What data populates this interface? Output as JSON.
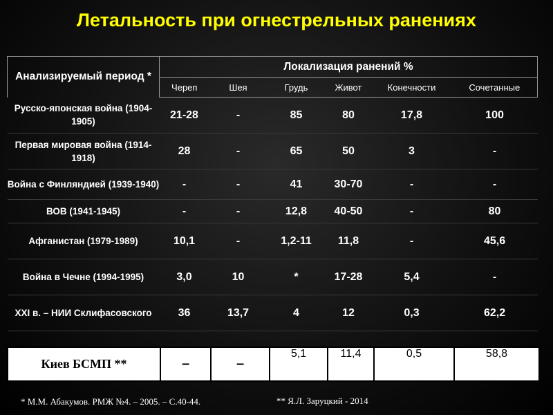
{
  "title": "Летальность при огнестрельных ранениях",
  "table": {
    "period_header": "Анализируемый период *",
    "localization_header": "Локализация ранений %",
    "columns": [
      "Череп",
      "Шея",
      "Грудь",
      "Живот",
      "Конечности",
      "Сочетанные"
    ],
    "rows": [
      {
        "period": "Русско-японская война (1904-1905)",
        "values": [
          "21-28",
          "-",
          "85",
          "80",
          "17,8",
          "100"
        ]
      },
      {
        "period": "Первая мировая война (1914-1918)",
        "values": [
          "28",
          "-",
          "65",
          "50",
          "3",
          "-"
        ]
      },
      {
        "period": "Война с Финляндией (1939-1940)",
        "values": [
          "-",
          "-",
          "41",
          "30-70",
          "-",
          "-"
        ]
      },
      {
        "period": "ВОВ (1941-1945)",
        "values": [
          "-",
          "-",
          "12,8",
          "40-50",
          "-",
          "80"
        ]
      },
      {
        "period": "Афганистан (1979-1989)",
        "values": [
          "10,1",
          "-",
          "1,2-11",
          "11,8",
          "-",
          "45,6"
        ]
      },
      {
        "period": "Война в Чечне (1994-1995)",
        "values": [
          "3,0",
          "10",
          "*",
          "17-28",
          "5,4",
          "-"
        ]
      },
      {
        "period": "XXI в. – НИИ Склифасовского",
        "values": [
          "36",
          "13,7",
          "4",
          "12",
          "0,3",
          "62,2"
        ]
      }
    ]
  },
  "kiev_row": {
    "period": "Киев БСМП **",
    "values": [
      "–",
      "–",
      "5,1",
      "11,4",
      "0,5",
      "58,8"
    ]
  },
  "footnotes": {
    "source_1": "* М.М. Абакумов. РМЖ №4. – 2005. – С.40-44.",
    "source_2": "** Я.Л. Заруцкий - 2014"
  },
  "colors": {
    "title": "#ffff00",
    "background": "#000000",
    "text": "#ffffff",
    "kiev_background": "#ffffff"
  }
}
